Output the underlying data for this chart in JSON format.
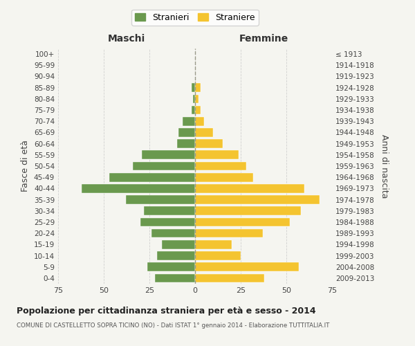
{
  "age_groups": [
    "0-4",
    "5-9",
    "10-14",
    "15-19",
    "20-24",
    "25-29",
    "30-34",
    "35-39",
    "40-44",
    "45-49",
    "50-54",
    "55-59",
    "60-64",
    "65-69",
    "70-74",
    "75-79",
    "80-84",
    "85-89",
    "90-94",
    "95-99",
    "100+"
  ],
  "birth_years": [
    "2009-2013",
    "2004-2008",
    "1999-2003",
    "1994-1998",
    "1989-1993",
    "1984-1988",
    "1979-1983",
    "1974-1978",
    "1969-1973",
    "1964-1968",
    "1959-1963",
    "1954-1958",
    "1949-1953",
    "1944-1948",
    "1939-1943",
    "1934-1938",
    "1929-1933",
    "1924-1928",
    "1919-1923",
    "1914-1918",
    "≤ 1913"
  ],
  "maschi": [
    22,
    26,
    21,
    18,
    24,
    30,
    28,
    38,
    62,
    47,
    34,
    29,
    10,
    9,
    7,
    2,
    1,
    2,
    0,
    0,
    0
  ],
  "femmine": [
    38,
    57,
    25,
    20,
    37,
    52,
    58,
    68,
    60,
    32,
    28,
    24,
    15,
    10,
    5,
    3,
    2,
    3,
    0,
    0,
    0
  ],
  "color_maschi": "#6a994e",
  "color_femmine": "#f4c430",
  "background_color": "#f5f5f0",
  "grid_color": "#cccccc",
  "xlim": 75,
  "title": "Popolazione per cittadinanza straniera per età e sesso - 2014",
  "subtitle": "COMUNE DI CASTELLETTO SOPRA TICINO (NO) - Dati ISTAT 1° gennaio 2014 - Elaborazione TUTTITALIA.IT",
  "ylabel_left": "Fasce di età",
  "ylabel_right": "Anni di nascita",
  "xlabel_left": "Maschi",
  "xlabel_right": "Femmine",
  "legend_stranieri": "Stranieri",
  "legend_straniere": "Straniere"
}
